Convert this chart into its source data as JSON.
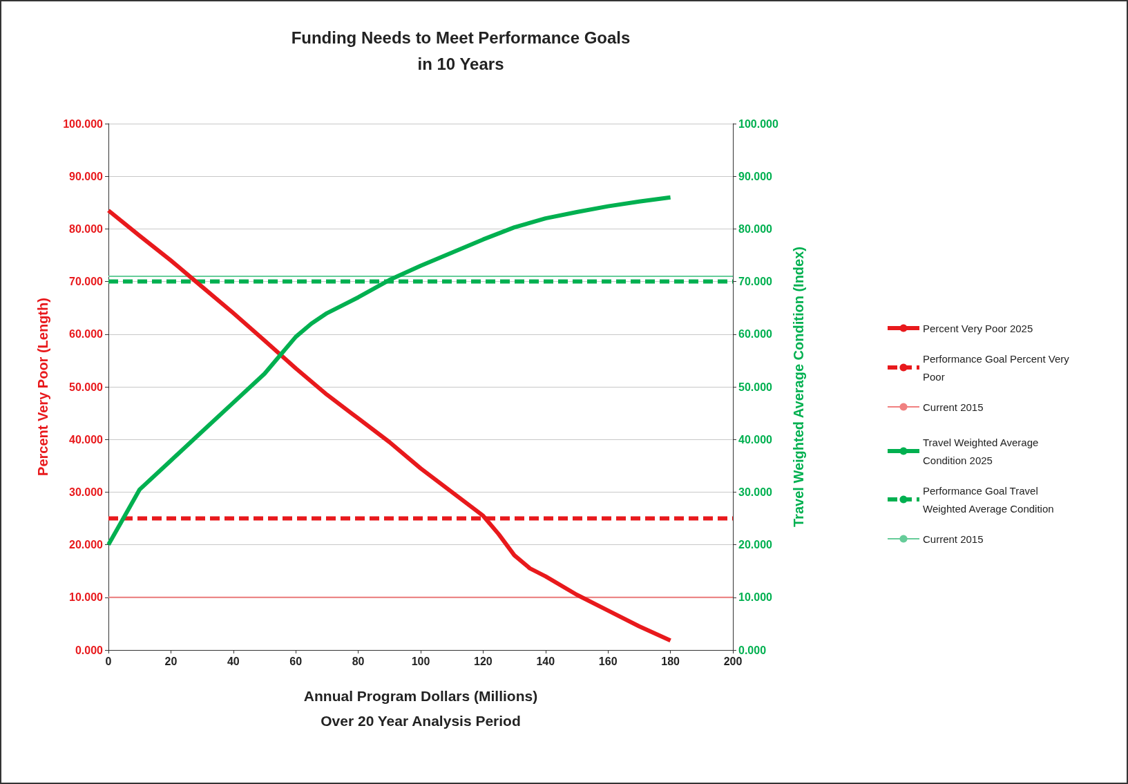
{
  "chart_data": {
    "type": "line",
    "title": "Funding Needs to Meet Performance Goals\nin 10 Years",
    "xlabel": "Annual Program Dollars (Millions)\nOver 20 Year Analysis Period",
    "ylabel": "Percent Very Poor (Length)",
    "y2label": "Travel Weighted Average Condition (Index)",
    "xlim": [
      0,
      200
    ],
    "xticks": [
      0,
      20,
      40,
      60,
      80,
      100,
      120,
      140,
      160,
      180,
      200
    ],
    "ylim": [
      0,
      100
    ],
    "yticks": [
      {
        "value": 0,
        "label": "0.000"
      },
      {
        "value": 10,
        "label": "10.000"
      },
      {
        "value": 20,
        "label": "20.000"
      },
      {
        "value": 30,
        "label": "30.000"
      },
      {
        "value": 40,
        "label": "40.000"
      },
      {
        "value": 50,
        "label": "50.000"
      },
      {
        "value": 60,
        "label": "60.000"
      },
      {
        "value": 70,
        "label": "70.000"
      },
      {
        "value": 80,
        "label": "80.000"
      },
      {
        "value": 90,
        "label": "90.000"
      },
      {
        "value": 100,
        "label": "100.000"
      }
    ],
    "y2lim": [
      0,
      100
    ],
    "y2ticks": [
      {
        "value": 0,
        "label": "0.000"
      },
      {
        "value": 10,
        "label": "10.000"
      },
      {
        "value": 20,
        "label": "20.000"
      },
      {
        "value": 30,
        "label": "30.000"
      },
      {
        "value": 40,
        "label": "40.000"
      },
      {
        "value": 50,
        "label": "50.000"
      },
      {
        "value": 60,
        "label": "60.000"
      },
      {
        "value": 70,
        "label": "70.000"
      },
      {
        "value": 80,
        "label": "80.000"
      },
      {
        "value": 90,
        "label": "90.000"
      },
      {
        "value": 100,
        "label": "100.000"
      }
    ],
    "grid": "y",
    "legend": "right",
    "marker": "none",
    "series": [
      {
        "name": "Percent Very Poor 2025",
        "color": "#e8191c",
        "line_style": "solid",
        "x": [
          0,
          10,
          20,
          28,
          40,
          50,
          60,
          70,
          80,
          90,
          100,
          110,
          120,
          125,
          130,
          135,
          140,
          150,
          160,
          170,
          180
        ],
        "values": [
          83.5,
          78.7,
          74,
          70,
          64,
          58.8,
          53.5,
          48.5,
          44,
          39.5,
          34.5,
          30,
          25.5,
          22,
          18,
          15.5,
          14,
          10.5,
          7.5,
          4.5,
          1.8
        ]
      },
      {
        "name": "Performance Goal Percent Very Poor",
        "color": "#e8191c",
        "line_style": "dashed",
        "x": [
          0,
          200
        ],
        "values": [
          25,
          25
        ]
      },
      {
        "name": "Current 2015",
        "color": "#f08080",
        "line_style": "solid",
        "x": [
          0,
          200
        ],
        "values": [
          10,
          10
        ]
      },
      {
        "name": "Travel Weighted Average Condition 2025",
        "color": "#00b050",
        "line_style": "solid",
        "axis": "y2",
        "x": [
          0,
          10,
          20,
          30,
          40,
          50,
          60,
          65,
          70,
          80,
          90,
          100,
          110,
          120,
          130,
          140,
          150,
          160,
          170,
          180
        ],
        "values": [
          20,
          30.5,
          36,
          41.5,
          47,
          52.5,
          59.5,
          62,
          64,
          67,
          70.3,
          73,
          75.5,
          78,
          80.3,
          82,
          83.2,
          84.3,
          85.2,
          86
        ]
      },
      {
        "name": "Performance Goal Travel Weighted Average Condition",
        "color": "#00b050",
        "line_style": "dashed",
        "axis": "y2",
        "x": [
          0,
          200
        ],
        "values": [
          70,
          70
        ]
      },
      {
        "name": "Current 2015",
        "color": "#66cc99",
        "line_style": "solid",
        "axis": "y2",
        "x": [
          0,
          200
        ],
        "values": [
          71,
          71
        ]
      }
    ]
  }
}
